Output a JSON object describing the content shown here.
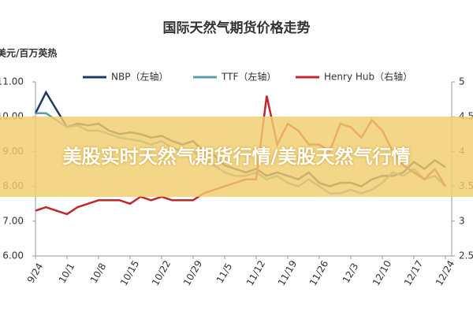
{
  "chart_data": {
    "type": "line",
    "title": "国际天然气期货价格走势",
    "y_label": "美元/百万英热",
    "categories": [
      "9/24",
      null,
      null,
      "10/1",
      null,
      null,
      "10/8",
      null,
      null,
      "10/15",
      null,
      null,
      "10/22",
      null,
      null,
      "10/29",
      null,
      null,
      "11/5",
      null,
      null,
      "11/12",
      null,
      null,
      "11/19",
      null,
      null,
      "11/26",
      null,
      null,
      "12/3",
      null,
      null,
      "12/10",
      null,
      null,
      "12/17",
      null,
      null,
      "12/24"
    ],
    "series": [
      {
        "name": "NBP（左轴）",
        "color": "#1f3864",
        "values": [
          10.1,
          10.7,
          10.2,
          9.7,
          9.8,
          9.75,
          9.8,
          9.6,
          9.5,
          9.55,
          9.5,
          9.4,
          9.45,
          9.3,
          9.2,
          9.3,
          9.0,
          8.9,
          8.6,
          8.5,
          8.4,
          8.5,
          8.3,
          8.4,
          8.3,
          8.2,
          8.4,
          8.1,
          8.0,
          8.1,
          8.1,
          8.0,
          8.2,
          8.3,
          8.3,
          8.4,
          8.7,
          8.5,
          8.75,
          8.55
        ]
      },
      {
        "name": "TTF（左轴）",
        "color": "#5b9bab",
        "values": [
          10.1,
          10.1,
          9.9,
          9.7,
          9.75,
          9.6,
          9.6,
          9.5,
          9.4,
          9.35,
          9.3,
          9.2,
          9.3,
          9.1,
          9.0,
          9.0,
          8.8,
          8.6,
          8.4,
          8.3,
          8.3,
          8.4,
          8.2,
          8.3,
          8.1,
          8.0,
          8.2,
          8.0,
          7.8,
          7.8,
          7.9,
          7.8,
          7.9,
          8.1,
          8.4,
          8.3,
          8.5,
          8.2,
          8.3,
          8.0
        ]
      },
      {
        "name": "Henry Hub（右轴）",
        "color": "#c0282d",
        "axis": "y2",
        "values": [
          3.15,
          3.2,
          3.15,
          3.1,
          3.2,
          3.25,
          3.3,
          3.3,
          3.3,
          3.25,
          3.35,
          3.3,
          3.35,
          3.3,
          3.3,
          3.3,
          3.4,
          3.45,
          3.5,
          3.55,
          3.6,
          3.6,
          4.8,
          4.1,
          4.4,
          4.3,
          4.1,
          4.1,
          4.0,
          4.4,
          4.35,
          4.2,
          4.45,
          4.3,
          4.0,
          3.8,
          3.7,
          3.6,
          3.75,
          3.5
        ]
      }
    ],
    "ylim": [
      6,
      11
    ],
    "yticks": [
      {
        "value": 6,
        "label": "6.00"
      },
      {
        "value": 7,
        "label": "7.00"
      },
      {
        "value": 8,
        "label": "8.00"
      },
      {
        "value": 9,
        "label": "9.00"
      },
      {
        "value": 10,
        "label": "10.00"
      },
      {
        "value": 11,
        "label": "11.00"
      }
    ],
    "y2lim": [
      2.5,
      5
    ],
    "y2ticks": [
      2.5,
      3,
      3.5,
      4,
      4.5,
      5
    ]
  },
  "banner": "美股实时天然气期货行情/美股天然气行情"
}
